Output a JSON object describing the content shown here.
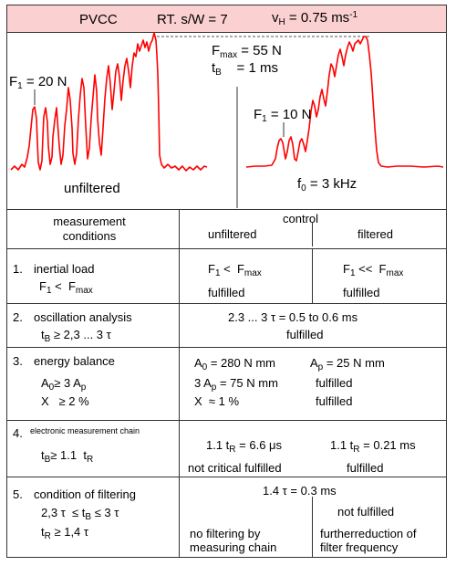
{
  "header": {
    "title": "PVCC",
    "ratio": "RT. s/W = 7",
    "velocity_symbol": "v",
    "velocity_sub": "H",
    "velocity_value": " = 0.75  ms",
    "velocity_exp": "-1"
  },
  "plots": {
    "left": {
      "f1_symbol": "F",
      "f1_sub": "1",
      "f1_value": " = 20 N",
      "caption": "unfiltered"
    },
    "right": {
      "fmax_symbol": "F",
      "fmax_sub": "max",
      "fmax_value": " = 55 N",
      "tb_symbol": "t",
      "tb_sub": "B",
      "tb_value": "    = 1 ms",
      "f1_symbol": "F",
      "f1_sub": "1",
      "f1_value": " = 10 N",
      "f0_symbol": "f",
      "f0_sub": "0",
      "f0_value": " = 3 kHz"
    },
    "trace_color": "#ff0000"
  },
  "table": {
    "head": {
      "conditions": "measurement\nconditions",
      "control": "control",
      "unfiltered": "unfiltered",
      "filtered": "filtered"
    },
    "rows": [
      {
        "number": "1.",
        "title": "inertial load",
        "formula_a": "F",
        "formula_a_sub": "1",
        "formula_b": " <  F",
        "formula_b_sub": "max",
        "unf_a": "F",
        "unf_a_sub": "1",
        "unf_b": " <  F",
        "unf_b_sub": "max",
        "unf_status": "fulfilled",
        "fil_a": "F",
        "fil_a_sub": "1",
        "fil_b": " <<  F",
        "fil_b_sub": "max",
        "fil_status": "fulfilled"
      },
      {
        "number": "2.",
        "title": "oscillation analysis",
        "formula_a": "t",
        "formula_a_sub": "B",
        "formula_b": " ≥ 2,3 ... 3 τ",
        "value": "2.3 ... 3 τ = 0.5  to  0.6 ms",
        "status": "fulfilled"
      },
      {
        "number": "3.",
        "title": "energy balance",
        "f1_a": "A",
        "f1_a_sub": "0",
        "f1_b": "≥ 3 A",
        "f1_b_sub": "p",
        "f2": "X   ≥ 2 %",
        "a0_a": "A",
        "a0_a_sub": "0",
        "a0_b": " = 280 N mm",
        "ap_a": "A",
        "ap_a_sub": "p",
        "ap_b": " = 25 N mm",
        "three_a": "3 A",
        "three_a_sub": "p",
        "three_b": " = 75 N mm",
        "status1": "fulfilled",
        "x": "X  ≈ 1 %",
        "status2": "fulfilled"
      },
      {
        "number": "4.",
        "title": "electronic measurement chain",
        "formula_a": "t",
        "formula_a_sub": "B",
        "formula_b": "≥ 1.1  t",
        "formula_b_sub": "R",
        "unf_a": "1.1 t",
        "unf_a_sub": "R",
        "unf_b": " = 6.6 μs",
        "unf_status": "not critical fulfilled",
        "fil_a": "1.1 t",
        "fil_a_sub": "R",
        "fil_b": " = 0.21 ms",
        "fil_status": "fulfilled"
      },
      {
        "number": "5.",
        "title": "condition of filtering",
        "f1_a": "2,3 τ  ≤ t",
        "f1_a_sub": "B",
        "f1_b": " ≤ 3 τ",
        "f2_a": "t",
        "f2_a_sub": "R",
        "f2_b": " ≥ 1,4 τ",
        "value": "1.4 τ = 0.3 ms",
        "unf_status": "no filtering by\nmeasuring chain",
        "fil_top": "not fulfilled",
        "fil_status": "furtherreduction of\nfilter frequency"
      }
    ]
  }
}
